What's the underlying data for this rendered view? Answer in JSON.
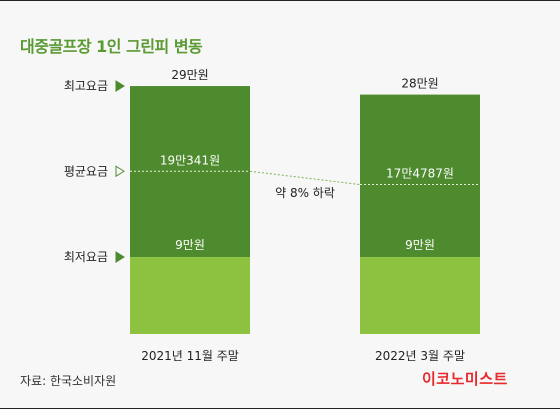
{
  "title": "대중골프장 1인 그린피 변동",
  "source": "자료: 한국소비자원",
  "brand": "이코노미스트",
  "colors": {
    "dark": "#4e8a2e",
    "light": "#8cc23f",
    "title": "#5a9a32",
    "brand": "#e8282b"
  },
  "chart_data": {
    "type": "bar",
    "categories": [
      "2021년 11월 주말",
      "2022년 3월 주말"
    ],
    "unit": "만원",
    "series": [
      {
        "name": "최고요금",
        "values": [
          29,
          28
        ],
        "labels": [
          "29만원",
          "28만원"
        ]
      },
      {
        "name": "평균요금",
        "values": [
          19.0341,
          17.4787
        ],
        "labels": [
          "19만341원",
          "17만4787원"
        ]
      },
      {
        "name": "최저요금",
        "values": [
          9,
          9
        ],
        "labels": [
          "9만원",
          "9만원"
        ]
      }
    ],
    "annotation": "약 8% 하락",
    "ylim": [
      0,
      29
    ]
  }
}
